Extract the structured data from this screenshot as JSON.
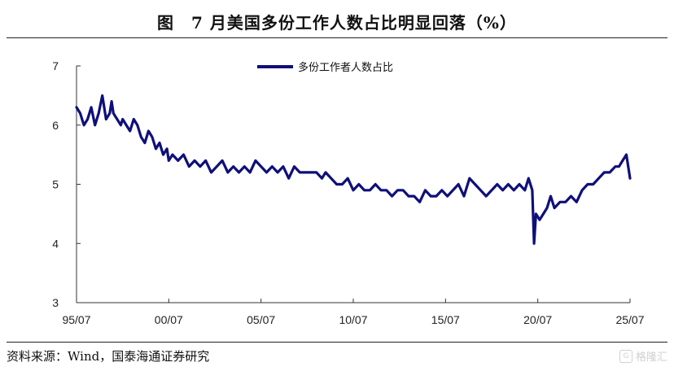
{
  "header": {
    "title": "图　7 月美国多份工作人数占比明显回落（%）"
  },
  "footer": {
    "source": "资料来源：Wind，国泰海通证券研究",
    "watermark": "格隆汇"
  },
  "colors": {
    "series": "#0f0f7a",
    "axis": "#333333"
  },
  "chart_data": {
    "type": "line",
    "title": "",
    "xlabel": "",
    "ylabel": "",
    "ylim": [
      3,
      7
    ],
    "yticks": [
      3,
      4,
      5,
      6,
      7
    ],
    "xlim": [
      1995.5,
      2025.5
    ],
    "xtick_values": [
      1995.5,
      2000.5,
      2005.5,
      2010.5,
      2015.5,
      2020.5,
      2025.5
    ],
    "xtick_labels": [
      "95/07",
      "00/07",
      "05/07",
      "10/07",
      "15/07",
      "20/07",
      "25/07"
    ],
    "legend": "top-center",
    "grid": false,
    "series": [
      {
        "name": "多份工作者人数占比",
        "x": [
          1995.5,
          1995.7,
          1995.9,
          1996.1,
          1996.3,
          1996.5,
          1996.7,
          1996.9,
          1997.1,
          1997.3,
          1997.4,
          1997.5,
          1997.7,
          1997.9,
          1998.0,
          1998.2,
          1998.4,
          1998.6,
          1998.8,
          1999.0,
          1999.2,
          1999.4,
          1999.6,
          1999.8,
          2000.0,
          2000.2,
          2000.4,
          2000.5,
          2000.7,
          2001.0,
          2001.3,
          2001.6,
          2001.9,
          2002.2,
          2002.5,
          2002.8,
          2003.1,
          2003.4,
          2003.7,
          2004.0,
          2004.3,
          2004.6,
          2004.9,
          2005.2,
          2005.5,
          2005.8,
          2006.1,
          2006.4,
          2006.7,
          2007.0,
          2007.3,
          2007.6,
          2007.9,
          2008.2,
          2008.5,
          2008.8,
          2009.0,
          2009.3,
          2009.6,
          2009.9,
          2010.2,
          2010.5,
          2010.8,
          2011.1,
          2011.4,
          2011.7,
          2012.0,
          2012.3,
          2012.6,
          2012.9,
          2013.2,
          2013.5,
          2013.8,
          2014.1,
          2014.4,
          2014.7,
          2015.0,
          2015.3,
          2015.6,
          2015.9,
          2016.2,
          2016.5,
          2016.8,
          2017.1,
          2017.4,
          2017.7,
          2018.0,
          2018.3,
          2018.6,
          2018.9,
          2019.2,
          2019.5,
          2019.8,
          2020.0,
          2020.1,
          2020.2,
          2020.3,
          2020.4,
          2020.6,
          2020.8,
          2021.0,
          2021.2,
          2021.4,
          2021.7,
          2022.0,
          2022.3,
          2022.6,
          2022.9,
          2023.2,
          2023.5,
          2023.8,
          2024.1,
          2024.4,
          2024.7,
          2024.9,
          2025.1,
          2025.3,
          2025.5
        ],
        "values": [
          6.3,
          6.2,
          6.0,
          6.1,
          6.3,
          6.0,
          6.2,
          6.5,
          6.1,
          6.2,
          6.4,
          6.2,
          6.1,
          6.0,
          6.1,
          6.0,
          5.9,
          6.1,
          6.0,
          5.8,
          5.7,
          5.9,
          5.8,
          5.6,
          5.7,
          5.5,
          5.6,
          5.4,
          5.5,
          5.4,
          5.5,
          5.3,
          5.4,
          5.3,
          5.4,
          5.2,
          5.3,
          5.4,
          5.2,
          5.3,
          5.2,
          5.3,
          5.2,
          5.4,
          5.3,
          5.2,
          5.3,
          5.2,
          5.3,
          5.1,
          5.3,
          5.2,
          5.2,
          5.2,
          5.2,
          5.1,
          5.2,
          5.1,
          5.0,
          5.0,
          5.1,
          4.9,
          5.0,
          4.9,
          4.9,
          5.0,
          4.9,
          4.9,
          4.8,
          4.9,
          4.9,
          4.8,
          4.8,
          4.7,
          4.9,
          4.8,
          4.8,
          4.9,
          4.8,
          4.9,
          5.0,
          4.8,
          5.1,
          5.0,
          4.9,
          4.8,
          4.9,
          5.0,
          4.9,
          5.0,
          4.9,
          5.0,
          4.9,
          5.1,
          5.0,
          4.9,
          4.0,
          4.5,
          4.4,
          4.5,
          4.6,
          4.8,
          4.6,
          4.7,
          4.7,
          4.8,
          4.7,
          4.9,
          5.0,
          5.0,
          5.1,
          5.2,
          5.2,
          5.3,
          5.3,
          5.4,
          5.5,
          5.1
        ]
      }
    ]
  }
}
